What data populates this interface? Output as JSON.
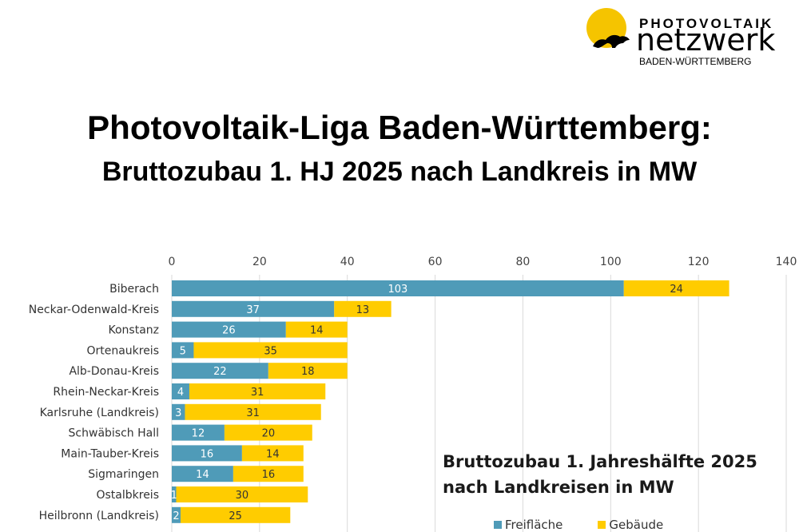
{
  "header": {
    "logo_line1": "PHOTOVOLTAIK",
    "logo_line2": "netzwerk",
    "logo_line3": "BADEN-WÜRTTEMBERG",
    "title": "Photovoltaik-Liga Baden-Württemberg:",
    "subtitle": "Bruttozubau 1. HJ 2025 nach Landkreis in MW"
  },
  "colors": {
    "freiflaeche": "#4f9bb8",
    "gebaeude": "#ffcc00",
    "grid": "#d9d9d9",
    "logo_sun": "#f5c400"
  },
  "chart_data": {
    "type": "bar",
    "orientation": "horizontal",
    "stacked": true,
    "title_line1": "Bruttozubau 1. Jahreshälfte 2025",
    "title_line2": "nach Landkreisen in MW",
    "xlim": [
      0,
      140
    ],
    "xticks": [
      "0",
      "20",
      "40",
      "60",
      "80",
      "100",
      "120",
      "140"
    ],
    "categories": [
      "Biberach",
      "Neckar-Odenwald-Kreis",
      "Konstanz",
      "Ortenaukreis",
      "Alb-Donau-Kreis",
      "Rhein-Neckar-Kreis",
      "Karlsruhe (Landkreis)",
      "Schwäbisch Hall",
      "Main-Tauber-Kreis",
      "Sigmaringen",
      "Ostalbkreis",
      "Heilbronn (Landkreis)"
    ],
    "series": [
      {
        "name": "Freifläche",
        "values": [
          103,
          37,
          26,
          5,
          22,
          4,
          3,
          12,
          16,
          14,
          1,
          2
        ]
      },
      {
        "name": "Gebäude",
        "values": [
          24,
          13,
          14,
          35,
          18,
          31,
          31,
          20,
          14,
          16,
          30,
          25
        ]
      }
    ],
    "legend_position": "bottom-right"
  }
}
